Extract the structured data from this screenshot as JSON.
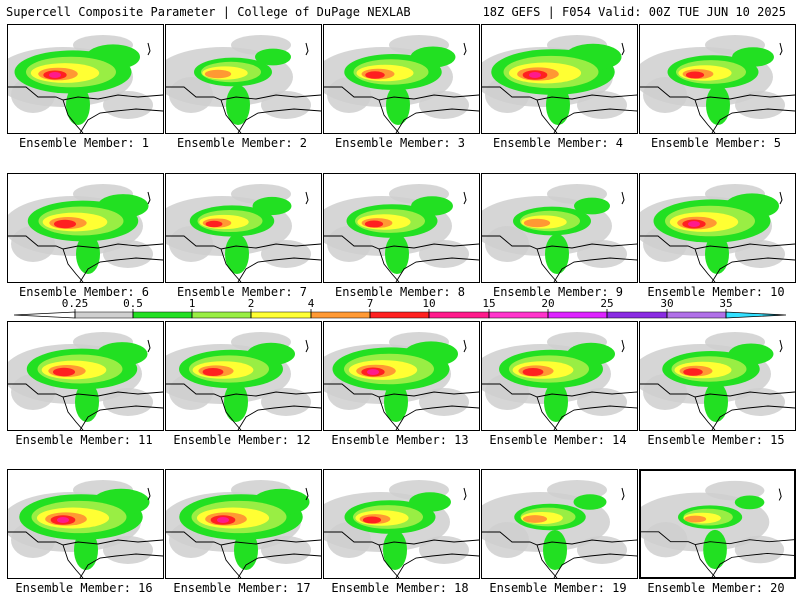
{
  "header": {
    "title": "Supercell Composite Parameter | College of DuPage NEXLAB",
    "run": "18Z GEFS | F054 Valid: 00Z TUE JUN 10 2025"
  },
  "members": [
    "Ensemble Member: 1",
    "Ensemble Member: 2",
    "Ensemble Member: 3",
    "Ensemble Member: 4",
    "Ensemble Member: 5",
    "Ensemble Member: 6",
    "Ensemble Member: 7",
    "Ensemble Member: 8",
    "Ensemble Member: 9",
    "Ensemble Member: 10",
    "Ensemble Member: 11",
    "Ensemble Member: 12",
    "Ensemble Member: 13",
    "Ensemble Member: 14",
    "Ensemble Member: 15",
    "Ensemble Member: 16",
    "Ensemble Member: 17",
    "Ensemble Member: 18",
    "Ensemble Member: 19",
    "Ensemble Member: 20"
  ],
  "colorbar": {
    "ticks": [
      "0.25",
      "0.5",
      "1",
      "2",
      "4",
      "7",
      "10",
      "15",
      "20",
      "25",
      "30",
      "35"
    ],
    "colors": [
      "#ffffff",
      "#cfcfcf",
      "#22e022",
      "#99ee44",
      "#ffff33",
      "#ff9933",
      "#ff2020",
      "#ff1a8c",
      "#ff33cc",
      "#dd22ff",
      "#8a2be2",
      "#b070e8",
      "#33e0ff"
    ]
  },
  "intensity": [
    0.9,
    0.6,
    0.75,
    0.95,
    0.7,
    0.85,
    0.65,
    0.7,
    0.6,
    0.9,
    0.85,
    0.8,
    0.9,
    0.8,
    0.75,
    0.95,
    0.95,
    0.7,
    0.55,
    0.5
  ]
}
